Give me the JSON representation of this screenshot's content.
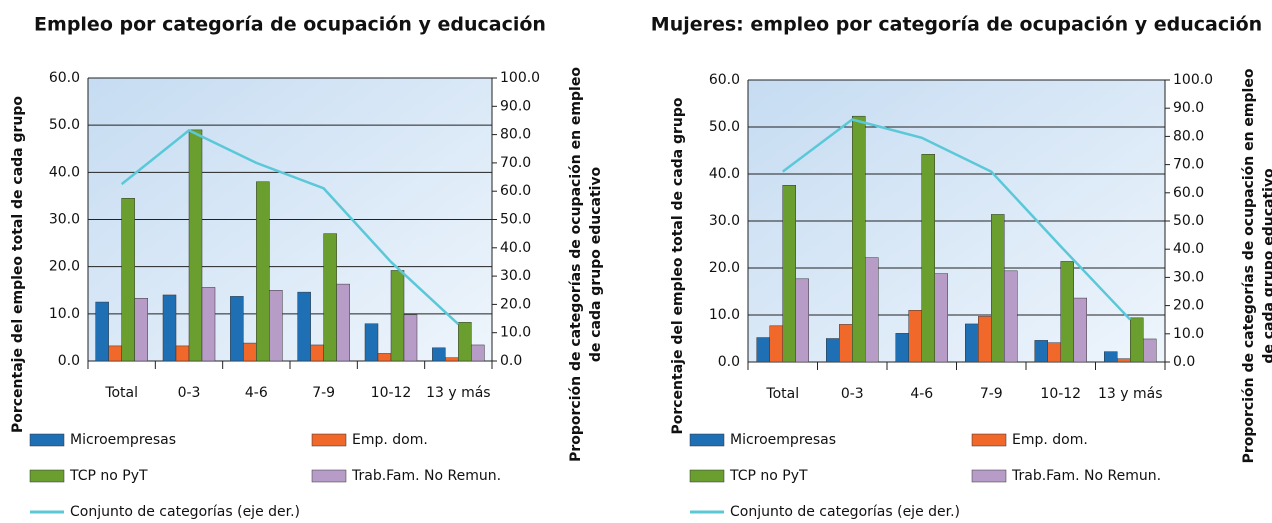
{
  "chart_data": [
    {
      "type": "bar",
      "title": "Empleo por categoría de ocupación y educación",
      "y_label": "Porcentaje del empleo total de cada grupo",
      "y2_label": [
        "Proporción  de categorías de ocupación en empleo",
        "de cada grupo educativo"
      ],
      "categories": [
        "Total",
        "0-3",
        "4-6",
        "7-9",
        "10-12",
        "13 y más"
      ],
      "series": [
        {
          "name": "Microempresas",
          "color": "#1f6fb5",
          "values": [
            12.5,
            14.0,
            13.7,
            14.6,
            7.9,
            2.8
          ]
        },
        {
          "name": "Emp. dom.",
          "color": "#f0682a",
          "values": [
            3.2,
            3.2,
            3.8,
            3.4,
            1.6,
            0.7
          ]
        },
        {
          "name": "TCP no PyT",
          "color": "#6a9e2e",
          "values": [
            34.5,
            49.0,
            38.0,
            27.0,
            19.2,
            8.2
          ]
        },
        {
          "name": "Trab.Fam. No Remun.",
          "color": "#b89cc8",
          "values": [
            13.3,
            15.6,
            15.0,
            16.3,
            9.8,
            3.4
          ]
        },
        {
          "name": "Conjunto de categorías (eje der.)",
          "color": "#5bc8d8",
          "axis": "y2",
          "values": [
            62.5,
            81.5,
            70.0,
            61.0,
            35.0,
            13.0
          ]
        }
      ],
      "ylim": [
        0,
        60
      ],
      "yticks": [
        {
          "value": 0,
          "label": "0.0"
        },
        {
          "value": 10,
          "label": "10.0"
        },
        {
          "value": 20,
          "label": "20.0"
        },
        {
          "value": 30,
          "label": "30.0"
        },
        {
          "value": 40,
          "label": "40.0"
        },
        {
          "value": 50,
          "label": "50.0"
        },
        {
          "value": 60,
          "label": "60.0"
        }
      ],
      "y2lim": [
        0,
        100
      ],
      "y2ticks": [
        {
          "value": 0,
          "label": "0.0"
        },
        {
          "value": 10,
          "label": "10.0"
        },
        {
          "value": 20,
          "label": "20.0"
        },
        {
          "value": 30,
          "label": "30.0"
        },
        {
          "value": 40,
          "label": "40.0"
        },
        {
          "value": 50,
          "label": "50.0"
        },
        {
          "value": 60,
          "label": "60.0"
        },
        {
          "value": 70,
          "label": "70.0"
        },
        {
          "value": 80,
          "label": "80.0"
        },
        {
          "value": 90,
          "label": "90.0"
        },
        {
          "value": 100,
          "label": "100.0"
        }
      ],
      "grid": true,
      "legend": "bottom"
    },
    {
      "type": "bar",
      "title": "Mujeres: empleo por categoría de ocupación y educación",
      "y_label": "Porcentaje del empleo total de cada grupo",
      "y2_label": [
        "Proporción de categorías de ocupación en empleo",
        "de cada grupo educativo"
      ],
      "categories": [
        "Total",
        "0-3",
        "4-6",
        "7-9",
        "10-12",
        "13 y más"
      ],
      "series": [
        {
          "name": "Microempresas",
          "color": "#1f6fb5",
          "values": [
            5.2,
            5.0,
            6.1,
            8.1,
            4.6,
            2.2
          ]
        },
        {
          "name": "Emp. dom.",
          "color": "#f0682a",
          "values": [
            7.7,
            8.0,
            11.0,
            9.7,
            4.1,
            0.7
          ]
        },
        {
          "name": "TCP no PyT",
          "color": "#6a9e2e",
          "values": [
            37.6,
            52.3,
            44.2,
            31.4,
            21.4,
            9.4
          ]
        },
        {
          "name": "Trab.Fam. No Remun.",
          "color": "#b89cc8",
          "values": [
            17.7,
            22.2,
            18.8,
            19.4,
            13.6,
            4.9
          ]
        },
        {
          "name": "Conjunto de categorías (eje der.)",
          "color": "#5bc8d8",
          "axis": "y2",
          "values": [
            67.5,
            86.0,
            79.5,
            67.5,
            41.0,
            15.0
          ]
        }
      ],
      "ylim": [
        0,
        60
      ],
      "yticks": [
        {
          "value": 0,
          "label": "0.0"
        },
        {
          "value": 10,
          "label": "10.0"
        },
        {
          "value": 20,
          "label": "20.0"
        },
        {
          "value": 30,
          "label": "30.0"
        },
        {
          "value": 40,
          "label": "40.0"
        },
        {
          "value": 50,
          "label": "50.0"
        },
        {
          "value": 60,
          "label": "60.0"
        }
      ],
      "y2lim": [
        0,
        100
      ],
      "y2ticks": [
        {
          "value": 0,
          "label": "0.0"
        },
        {
          "value": 10,
          "label": "10.0"
        },
        {
          "value": 20,
          "label": "20.0"
        },
        {
          "value": 30,
          "label": "30.0"
        },
        {
          "value": 40,
          "label": "40.0"
        },
        {
          "value": 50,
          "label": "50.0"
        },
        {
          "value": 60,
          "label": "60.0"
        },
        {
          "value": 70,
          "label": "70.0"
        },
        {
          "value": 80,
          "label": "80.0"
        },
        {
          "value": 90,
          "label": "90.0"
        },
        {
          "value": 100,
          "label": "100.0"
        }
      ],
      "grid": true,
      "legend": "bottom"
    }
  ]
}
